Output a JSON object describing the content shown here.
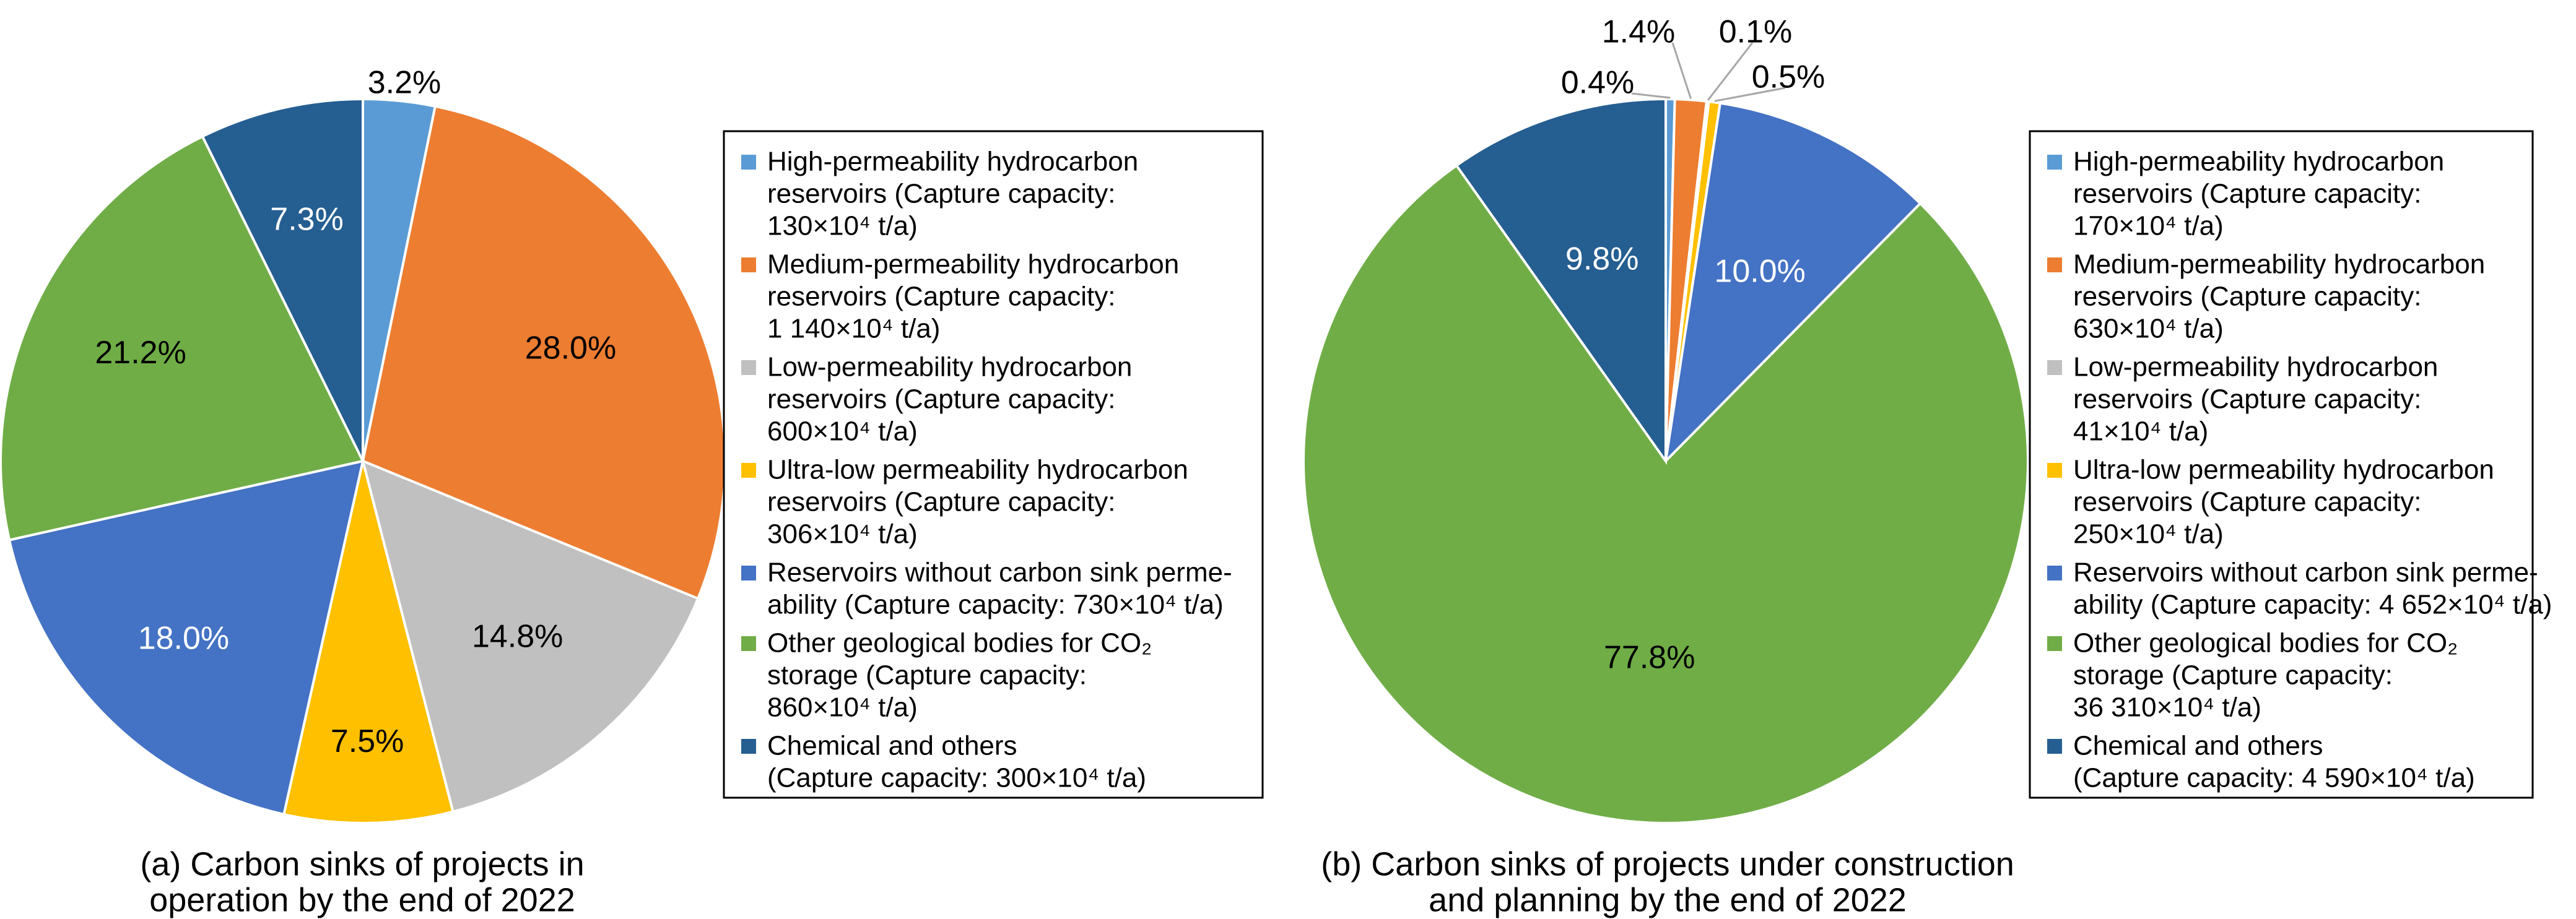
{
  "chart_data": [
    {
      "type": "pie",
      "title": "(a) Carbon sinks of projects in operation by the end of 2022",
      "caption_lines": [
        "(a) Carbon sinks of projects in",
        "operation by the end of 2022"
      ],
      "labels": [
        "High-permeability hydrocarbon reservoirs",
        "Medium-permeability hydrocarbon reservoirs",
        "Low-permeability hydrocarbon reservoirs",
        "Ultra-low permeability hydrocarbon reservoirs",
        "Reservoirs without carbon sink permeability",
        "Other geological bodies for CO2 storage",
        "Chemical and others"
      ],
      "values": [
        3.2,
        28.0,
        14.8,
        7.5,
        18.0,
        21.2,
        7.3
      ],
      "value_labels": [
        "3.2%",
        "28.0%",
        "14.8%",
        "7.5%",
        "18.0%",
        "21.2%",
        "7.3%"
      ],
      "colors": [
        "#5B9BD5",
        "#ED7D31",
        "#C0C0C0",
        "#FFC000",
        "#4472C4",
        "#70AD47",
        "#255E91"
      ],
      "label_colors": [
        "#000000",
        "#000000",
        "#000000",
        "#000000",
        "#ffffff",
        "#000000",
        "#ffffff"
      ],
      "legend_placement": "right",
      "legend": [
        [
          "High-permeability hydrocarbon",
          "reservoirs (Capture capacity:",
          "130×10⁴ t/a)"
        ],
        [
          "Medium-permeability hydrocarbon",
          "reservoirs (Capture capacity:",
          "1 140×10⁴ t/a)"
        ],
        [
          "Low-permeability hydrocarbon",
          "reservoirs (Capture capacity:",
          "600×10⁴ t/a)"
        ],
        [
          "Ultra-low permeability hydrocarbon",
          "reservoirs (Capture capacity:",
          "306×10⁴ t/a)"
        ],
        [
          "Reservoirs without carbon sink perme-",
          "ability (Capture capacity: 730×10⁴ t/a)"
        ],
        [
          "Other geological bodies for CO₂",
          "storage (Capture capacity:",
          "860×10⁴ t/a)"
        ],
        [
          "Chemical and others",
          "(Capture capacity: 300×10⁴ t/a)"
        ]
      ]
    },
    {
      "type": "pie",
      "title": "(b) Carbon sinks of projects under construction and planning by the end of 2022",
      "caption_lines": [
        "(b) Carbon sinks of projects under construction",
        "and planning by the end of 2022"
      ],
      "labels": [
        "High-permeability hydrocarbon reservoirs",
        "Medium-permeability hydrocarbon reservoirs",
        "Low-permeability hydrocarbon reservoirs",
        "Ultra-low permeability hydrocarbon reservoirs",
        "Reservoirs without carbon sink permeability",
        "Other geological bodies for CO2 storage",
        "Chemical and others"
      ],
      "values": [
        0.4,
        1.4,
        0.1,
        0.5,
        10.0,
        77.8,
        9.8
      ],
      "value_labels": [
        "0.4%",
        "1.4%",
        "0.1%",
        "0.5%",
        "10.0%",
        "77.8%",
        "9.8%"
      ],
      "colors": [
        "#5B9BD5",
        "#ED7D31",
        "#C0C0C0",
        "#FFC000",
        "#4472C4",
        "#70AD47",
        "#255E91"
      ],
      "label_colors": [
        "#000000",
        "#000000",
        "#000000",
        "#000000",
        "#ffffff",
        "#000000",
        "#ffffff"
      ],
      "legend_placement": "right",
      "legend": [
        [
          "High-permeability hydrocarbon",
          "reservoirs (Capture capacity:",
          "170×10⁴ t/a)"
        ],
        [
          "Medium-permeability hydrocarbon",
          "reservoirs (Capture capacity:",
          "630×10⁴ t/a)"
        ],
        [
          "Low-permeability hydrocarbon",
          "reservoirs (Capture capacity:",
          "41×10⁴ t/a)"
        ],
        [
          "Ultra-low permeability hydrocarbon",
          "reservoirs (Capture capacity:",
          "250×10⁴ t/a)"
        ],
        [
          "Reservoirs without carbon sink perme-",
          "ability (Capture capacity: 4 652×10⁴ t/a)"
        ],
        [
          "Other geological bodies for CO₂",
          "storage (Capture capacity:",
          "36 310×10⁴ t/a)"
        ],
        [
          "Chemical and others",
          "(Capture capacity: 4 590×10⁴ t/a)"
        ]
      ]
    }
  ]
}
